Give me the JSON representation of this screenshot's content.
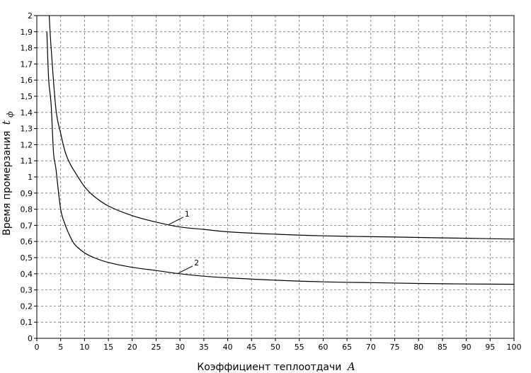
{
  "chart_data": {
    "type": "line",
    "xlabel": "Коэффициент теплоотдачи",
    "xlabel_var": "A",
    "ylabel": "Время промерзания",
    "ylabel_var": "t",
    "ylabel_sub": "ф",
    "xlim": [
      0,
      100
    ],
    "ylim": [
      0,
      2
    ],
    "grid": true,
    "xticks": [
      0,
      5,
      10,
      15,
      20,
      25,
      30,
      35,
      40,
      45,
      50,
      55,
      60,
      65,
      70,
      75,
      80,
      85,
      90,
      95,
      100
    ],
    "yticks": [
      "0",
      "0,1",
      "0,2",
      "0,3",
      "0,4",
      "0,5",
      "0,6",
      "0,7",
      "0,8",
      "0,9",
      "1",
      "1,1",
      "1,2",
      "1,3",
      "1,4",
      "1,5",
      "1,6",
      "1,7",
      "1,8",
      "1,9",
      "2"
    ],
    "series": [
      {
        "name": "1",
        "x": [
          2.6,
          3,
          4,
          5,
          6,
          7,
          8,
          10,
          12,
          15,
          20,
          25,
          30,
          35,
          40,
          50,
          60,
          70,
          80,
          90,
          100
        ],
        "y": [
          2.0,
          1.8,
          1.42,
          1.27,
          1.15,
          1.08,
          1.03,
          0.94,
          0.88,
          0.82,
          0.76,
          0.72,
          0.69,
          0.675,
          0.66,
          0.645,
          0.635,
          0.63,
          0.625,
          0.62,
          0.615
        ]
      },
      {
        "name": "2",
        "x": [
          2.1,
          2.5,
          3,
          3.5,
          4,
          5,
          6,
          7,
          8,
          10,
          12,
          15,
          20,
          25,
          30,
          35,
          40,
          50,
          60,
          70,
          80,
          90,
          100
        ],
        "y": [
          1.9,
          1.6,
          1.45,
          1.15,
          1.05,
          0.8,
          0.7,
          0.63,
          0.58,
          0.53,
          0.5,
          0.47,
          0.44,
          0.42,
          0.4,
          0.385,
          0.375,
          0.36,
          0.35,
          0.345,
          0.34,
          0.337,
          0.335
        ]
      }
    ],
    "annotations": [
      {
        "text": "1",
        "series": 0,
        "at_x": 28
      },
      {
        "text": "2",
        "series": 1,
        "at_x": 30
      }
    ]
  }
}
